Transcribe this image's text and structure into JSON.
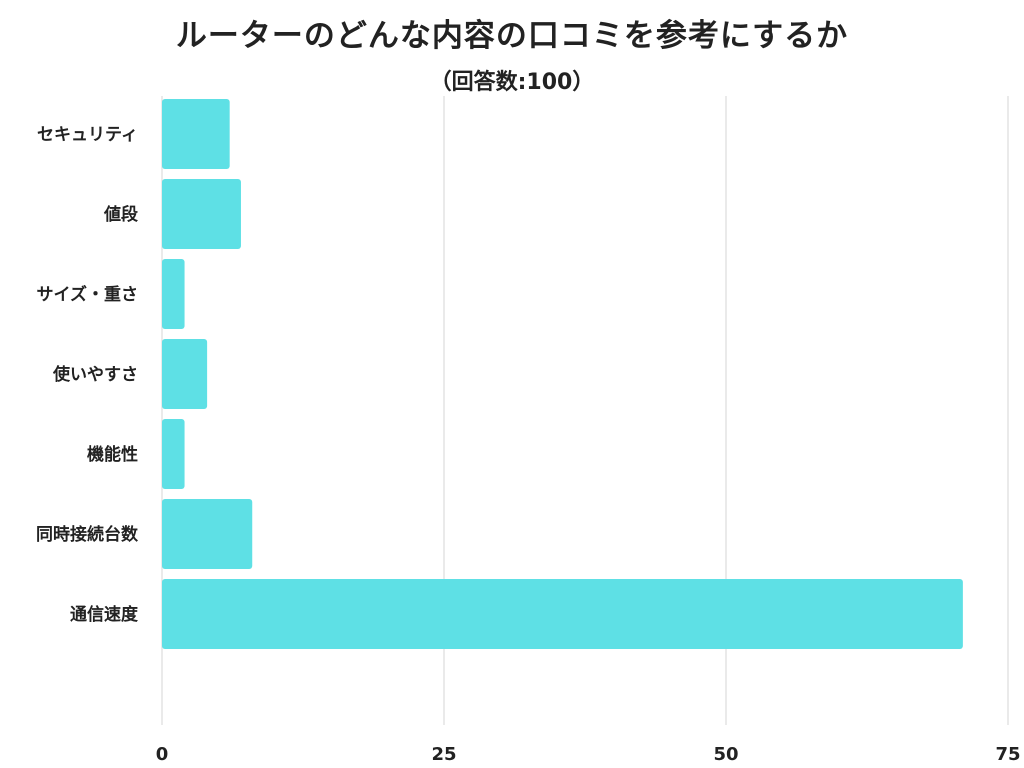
{
  "chart_data": {
    "type": "bar",
    "orientation": "horizontal",
    "title": "ルーターのどんな内容の口コミを参考にするか",
    "subtitle": "（回答数:100）",
    "categories": [
      "セキュリティ",
      "値段",
      "サイズ・重さ",
      "使いやすさ",
      "機能性",
      "同時接続台数",
      "通信速度"
    ],
    "values": [
      6,
      7,
      2,
      4,
      2,
      8,
      71
    ],
    "xlim": [
      0,
      75
    ],
    "xticks": [
      "0",
      "25",
      "50",
      "75"
    ],
    "grid": true,
    "bar_color": "#5ee0e5",
    "grid_color": "#dddddd"
  }
}
